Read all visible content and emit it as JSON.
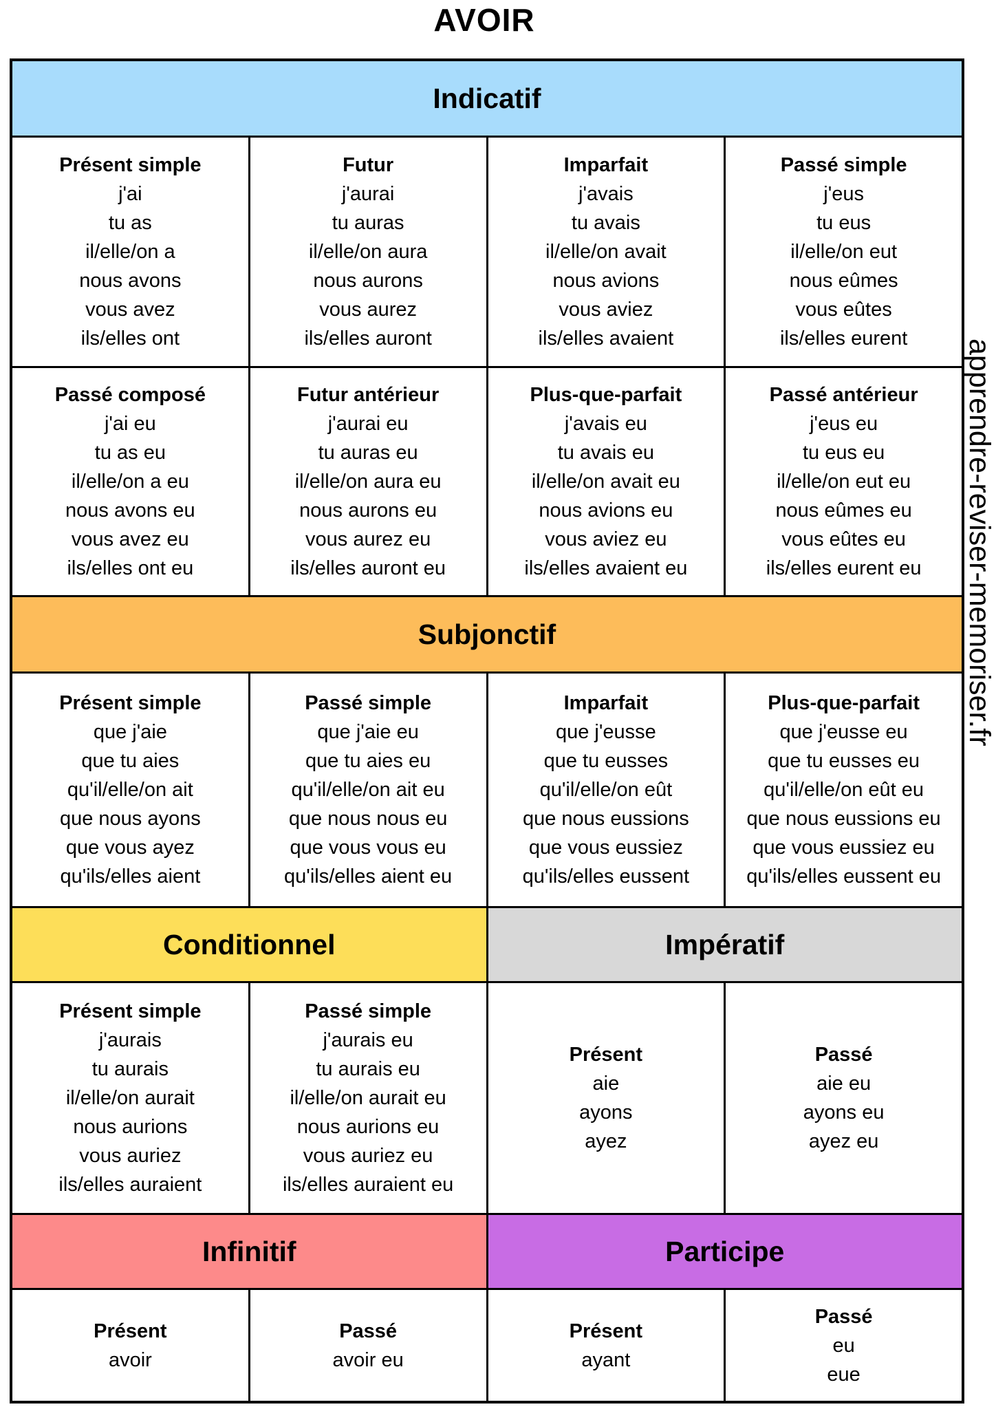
{
  "title": "AVOIR",
  "watermark": "apprendre-reviser-memoriser.fr",
  "sections": [
    {
      "id": "indicatif",
      "label": "Indicatif",
      "color": "#A8DCFC",
      "cells": [
        {
          "tense": "Présent simple",
          "forms": [
            "j'ai",
            "tu as",
            "il/elle/on a",
            "nous avons",
            "vous avez",
            "ils/elles ont"
          ]
        },
        {
          "tense": "Futur",
          "forms": [
            "j'aurai",
            "tu auras",
            "il/elle/on aura",
            "nous aurons",
            "vous aurez",
            "ils/elles auront"
          ]
        },
        {
          "tense": "Imparfait",
          "forms": [
            "j'avais",
            "tu avais",
            "il/elle/on avait",
            "nous avions",
            "vous aviez",
            "ils/elles avaient"
          ]
        },
        {
          "tense": "Passé simple",
          "forms": [
            "j'eus",
            "tu eus",
            "il/elle/on eut",
            "nous eûmes",
            "vous eûtes",
            "ils/elles eurent"
          ]
        },
        {
          "tense": "Passé composé",
          "forms": [
            "j'ai eu",
            "tu as eu",
            "il/elle/on a eu",
            "nous avons eu",
            "vous avez eu",
            "ils/elles ont eu"
          ]
        },
        {
          "tense": "Futur antérieur",
          "forms": [
            "j'aurai eu",
            "tu auras eu",
            "il/elle/on aura eu",
            "nous aurons eu",
            "vous aurez eu",
            "ils/elles auront eu"
          ]
        },
        {
          "tense": "Plus-que-parfait",
          "forms": [
            "j'avais eu",
            "tu avais eu",
            "il/elle/on avait eu",
            "nous avions eu",
            "vous aviez eu",
            "ils/elles avaient eu"
          ]
        },
        {
          "tense": "Passé antérieur",
          "forms": [
            "j'eus eu",
            "tu eus eu",
            "il/elle/on eut eu",
            "nous eûmes eu",
            "vous eûtes eu",
            "ils/elles eurent eu"
          ]
        }
      ]
    },
    {
      "id": "subjonctif",
      "label": "Subjonctif",
      "color": "#FDBC5A",
      "cells": [
        {
          "tense": "Présent simple",
          "forms": [
            "que j'aie",
            "que tu aies",
            "qu'il/elle/on ait",
            "que nous ayons",
            "que vous ayez",
            "qu'ils/elles aient"
          ]
        },
        {
          "tense": "Passé simple",
          "forms": [
            "que j'aie eu",
            "que tu aies eu",
            "qu'il/elle/on ait eu",
            "que nous nous eu",
            "que vous vous eu",
            "qu'ils/elles aient eu"
          ]
        },
        {
          "tense": "Imparfait",
          "forms": [
            "que j'eusse",
            "que tu eusses",
            "qu'il/elle/on eût",
            "que nous eussions",
            "que vous eussiez",
            "qu'ils/elles eussent"
          ]
        },
        {
          "tense": "Plus-que-parfait",
          "forms": [
            "que j'eusse eu",
            "que tu eusses eu",
            "qu'il/elle/on eût eu",
            "que nous eussions eu",
            "que vous eussiez eu",
            "qu'ils/elles eussent eu"
          ]
        }
      ]
    },
    {
      "id": "conditionnel",
      "label": "Conditionnel",
      "color": "#FDDE59",
      "cells": [
        {
          "tense": "Présent simple",
          "forms": [
            "j'aurais",
            "tu aurais",
            "il/elle/on aurait",
            "nous aurions",
            "vous auriez",
            "ils/elles auraient"
          ]
        },
        {
          "tense": "Passé simple",
          "forms": [
            "j'aurais eu",
            "tu aurais eu",
            "il/elle/on aurait eu",
            "nous aurions eu",
            "vous auriez eu",
            "ils/elles auraient eu"
          ]
        }
      ]
    },
    {
      "id": "imperatif",
      "label": "Impératif",
      "color": "#D8D8D8",
      "cells": [
        {
          "tense": "Présent",
          "forms": [
            "aie",
            "ayons",
            "ayez"
          ]
        },
        {
          "tense": "Passé",
          "forms": [
            "aie eu",
            "ayons eu",
            "ayez eu"
          ]
        }
      ]
    },
    {
      "id": "infinitif",
      "label": "Infinitif",
      "color": "#FD8A8A",
      "cells": [
        {
          "tense": "Présent",
          "forms": [
            "avoir"
          ]
        },
        {
          "tense": "Passé",
          "forms": [
            "avoir eu"
          ]
        }
      ]
    },
    {
      "id": "participe",
      "label": "Participe",
      "color": "#C86CE4",
      "cells": [
        {
          "tense": "Présent",
          "forms": [
            "ayant"
          ]
        },
        {
          "tense": "Passé",
          "forms": [
            "eu",
            "eue"
          ]
        }
      ]
    }
  ]
}
